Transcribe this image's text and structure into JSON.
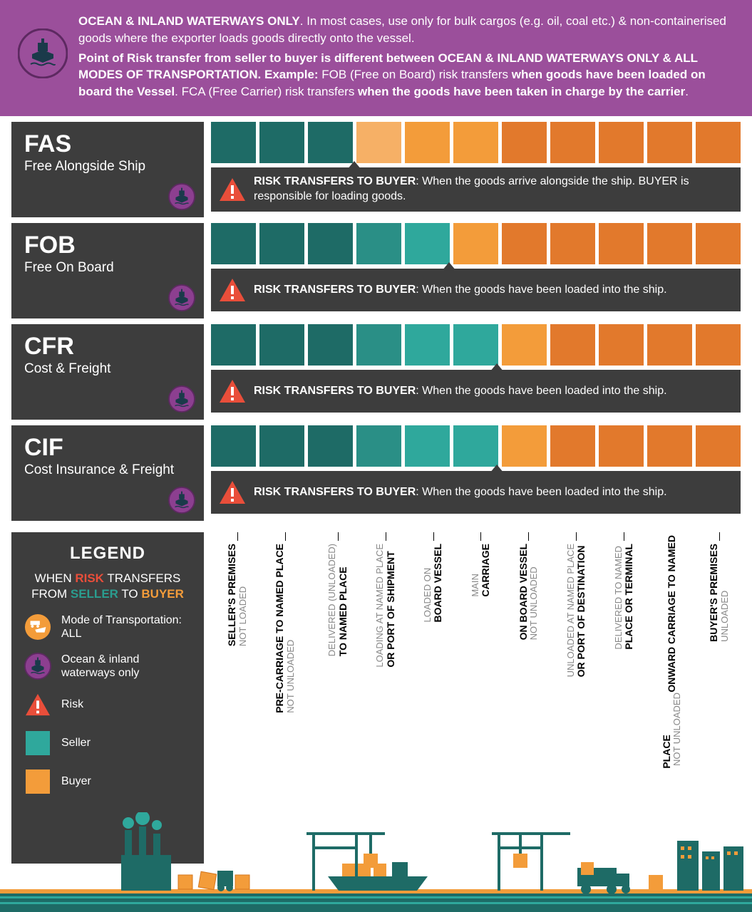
{
  "colors": {
    "header_bg": "#9b4f9b",
    "panel_bg": "#3d3d3d",
    "seller": "#1e6b66",
    "seller_light": "#2fa89c",
    "buyer": "#f39c3a",
    "buyer_dark": "#e2792c",
    "risk_red": "#e94e3a",
    "ship_badge_bg": "#8c3f90",
    "ship_badge_ring": "#5d2961",
    "mode_all_bg": "#f39c3a"
  },
  "header": {
    "line1_lead": "OCEAN & INLAND WATERWAYS ONLY",
    "line1_rest": ". In most cases, use only for bulk cargos (e.g. oil, coal etc.) & non-containerised goods where the exporter loads goods directly onto the vessel.",
    "line2_lead": "Point of Risk transfer from seller to buyer is different between OCEAN & INLAND WATERWAYS ONLY & ALL MODES OF TRANSPORTATION.  Example:",
    "line2_mid": " FOB (Free on Board) risk transfers ",
    "line2_b1": "when goods have been loaded on board the Vessel",
    "line2_mid2": ". FCA (Free Carrier) risk transfers ",
    "line2_b2": "when the goods have been taken in charge by the carrier",
    "line2_end": "."
  },
  "terms": [
    {
      "code": "FAS",
      "full": "Free Alongside Ship",
      "seller_boxes": 3,
      "box_colors": [
        "#1e6b66",
        "#1e6b66",
        "#1e6b66",
        "#f6b066",
        "#f39c3a",
        "#f39c3a",
        "#e2792c",
        "#e2792c",
        "#e2792c",
        "#e2792c",
        "#e2792c"
      ],
      "risk_marker_pct": 27,
      "risk_text": ": When the goods arrive alongside the ship. BUYER is responsible for loading goods."
    },
    {
      "code": "FOB",
      "full": "Free On Board",
      "seller_boxes": 5,
      "box_colors": [
        "#1e6b66",
        "#1e6b66",
        "#1e6b66",
        "#2a8f86",
        "#2fa89c",
        "#f39c3a",
        "#e2792c",
        "#e2792c",
        "#e2792c",
        "#e2792c",
        "#e2792c"
      ],
      "risk_marker_pct": 45,
      "risk_text": ": When the goods have been loaded into the ship."
    },
    {
      "code": "CFR",
      "full": "Cost & Freight",
      "seller_boxes": 6,
      "box_colors": [
        "#1e6b66",
        "#1e6b66",
        "#1e6b66",
        "#2a8f86",
        "#2fa89c",
        "#2fa89c",
        "#f39c3a",
        "#e2792c",
        "#e2792c",
        "#e2792c",
        "#e2792c"
      ],
      "risk_marker_pct": 54,
      "risk_text": ": When the goods have been loaded into the ship."
    },
    {
      "code": "CIF",
      "full": "Cost Insurance & Freight",
      "seller_boxes": 6,
      "box_colors": [
        "#1e6b66",
        "#1e6b66",
        "#1e6b66",
        "#2a8f86",
        "#2fa89c",
        "#2fa89c",
        "#f39c3a",
        "#e2792c",
        "#e2792c",
        "#e2792c",
        "#e2792c"
      ],
      "risk_marker_pct": 54,
      "risk_text": ": When the goods have been loaded into the ship."
    }
  ],
  "risk_lead": "RISK TRANSFERS TO BUYER",
  "legend": {
    "title": "LEGEND",
    "subtitle_pre": "WHEN ",
    "subtitle_risk": "RISK",
    "subtitle_mid1": " TRANSFERS FROM ",
    "subtitle_seller": "SELLER",
    "subtitle_mid2": " TO ",
    "subtitle_buyer": "BUYER",
    "items": [
      {
        "type": "mode-all",
        "label": "Mode of Transportation: ALL"
      },
      {
        "type": "mode-ocean",
        "label": "Ocean & inland waterways only"
      },
      {
        "type": "risk",
        "label": "Risk"
      },
      {
        "type": "swatch-seller",
        "label": "Seller"
      },
      {
        "type": "swatch-buyer",
        "label": "Buyer"
      }
    ]
  },
  "stages": [
    {
      "main": "SELLER'S PREMISES",
      "sub": "NOT LOADED",
      "pct": 3
    },
    {
      "main": "PRE-CARRIAGE TO NAMED PLACE",
      "sub": "NOT UNLOADED",
      "pct": 12
    },
    {
      "main": "DELIVERED (UNLOADED)",
      "main2": "TO NAMED PLACE",
      "sub": "",
      "pct": 22,
      "grey_main": true
    },
    {
      "main": "LOADING AT NAMED PLACE",
      "main2": "OR PORT OF SHIPMENT",
      "sub": "",
      "pct": 31,
      "grey_first": true
    },
    {
      "main": "LOADED ON",
      "main2": "BOARD VESSEL",
      "sub": "",
      "pct": 40,
      "grey_first": true
    },
    {
      "main": "MAIN",
      "main2": "CARRIAGE",
      "sub": "",
      "pct": 49,
      "grey_first": true
    },
    {
      "main": "ON BOARD VESSEL",
      "sub": "NOT UNLOADED",
      "pct": 58
    },
    {
      "main": "UNLOADED AT NAMED PLACE",
      "main2": "OR PORT OF DESTINATION",
      "sub": "",
      "pct": 67,
      "grey_first": true
    },
    {
      "main": "DELIVERED TO NAMED",
      "main2": "PLACE OR TERMINAL",
      "sub": "",
      "pct": 76,
      "grey_first": true
    },
    {
      "main": "ONWARD CARRIAGE TO NAMED",
      "main2": "PLACE",
      "sub": "NOT UNLOADED",
      "pct": 85,
      "combine_sub": true
    },
    {
      "main": "BUYER'S PREMISES",
      "sub": "UNLOADED",
      "pct": 94
    }
  ],
  "box_count": 11
}
